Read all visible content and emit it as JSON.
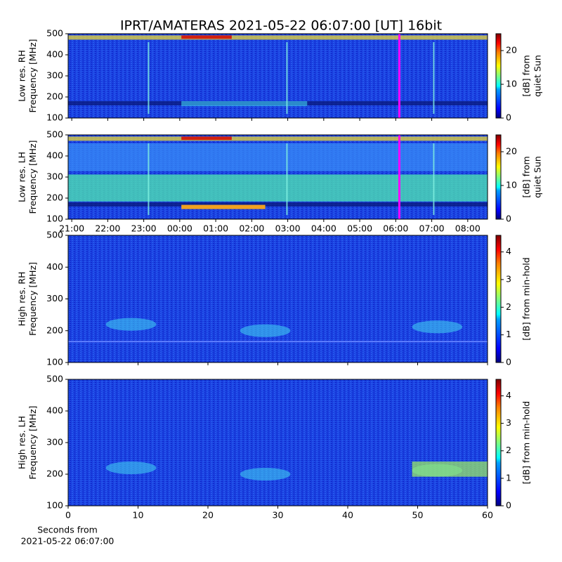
{
  "chart_data": [
    {
      "type": "spectrogram",
      "title": "IPRT/AMATERAS 2021-05-22 06:07:00 [UT]   16bit",
      "ylabel": [
        "Low res. RH",
        "Frequency [MHz]"
      ],
      "ylim": [
        100,
        500
      ],
      "yticks": [
        100,
        200,
        300,
        400,
        500
      ],
      "xlim": [
        -0.1,
        11.55
      ],
      "marker_x": 9.1,
      "marker_color": "#ff00ff",
      "cmap": "jet",
      "colorbar_label": [
        "[dB] from",
        "quiet Sun"
      ],
      "clim": [
        0,
        25
      ],
      "cticks": [
        0,
        10,
        20
      ]
    },
    {
      "type": "spectrogram",
      "ylabel": [
        "Low res. LH",
        "Frequency [MHz]"
      ],
      "ylim": [
        100,
        500
      ],
      "yticks": [
        100,
        200,
        300,
        400,
        500
      ],
      "xlim": [
        -0.1,
        11.55
      ],
      "xticks": [
        {
          "value": 0,
          "label": "21:00"
        },
        {
          "value": 1,
          "label": "22:00"
        },
        {
          "value": 2,
          "label": "23:00"
        },
        {
          "value": 3,
          "label": "00:00"
        },
        {
          "value": 4,
          "label": "01:00"
        },
        {
          "value": 5,
          "label": "02:00"
        },
        {
          "value": 6,
          "label": "03:00"
        },
        {
          "value": 7,
          "label": "04:00"
        },
        {
          "value": 8,
          "label": "05:00"
        },
        {
          "value": 9,
          "label": "06:00"
        },
        {
          "value": 10,
          "label": "07:00"
        },
        {
          "value": 11,
          "label": "08:00"
        }
      ],
      "marker_x": 9.1,
      "marker_color": "#ff00ff",
      "cmap": "jet",
      "colorbar_label": [
        "[dB] from",
        "quiet Sun"
      ],
      "clim": [
        0,
        25
      ],
      "cticks": [
        0,
        10,
        20
      ]
    },
    {
      "type": "spectrogram",
      "ylabel": [
        "High res. RH",
        "Frequency [MHz]"
      ],
      "ylim": [
        100,
        500
      ],
      "yticks": [
        100,
        200,
        300,
        400,
        500
      ],
      "xlim": [
        0,
        60
      ],
      "cmap": "jet",
      "colorbar_label": [
        "[dB] from min-hold"
      ],
      "clim": [
        0,
        4.6
      ],
      "cticks": [
        0,
        1,
        2,
        3,
        4
      ]
    },
    {
      "type": "spectrogram",
      "ylabel": [
        "High res. LH",
        "Frequency [MHz]"
      ],
      "ylim": [
        100,
        500
      ],
      "yticks": [
        100,
        200,
        300,
        400,
        500
      ],
      "xlim": [
        0,
        60
      ],
      "xticks": [
        0,
        10,
        20,
        30,
        40,
        50,
        60
      ],
      "xlabel": [
        "Seconds from",
        "2021-05-22 06:07:00"
      ],
      "cmap": "jet",
      "colorbar_label": [
        "[dB] from min-hold"
      ],
      "clim": [
        0,
        4.6
      ],
      "cticks": [
        0,
        1,
        2,
        3,
        4
      ]
    }
  ]
}
